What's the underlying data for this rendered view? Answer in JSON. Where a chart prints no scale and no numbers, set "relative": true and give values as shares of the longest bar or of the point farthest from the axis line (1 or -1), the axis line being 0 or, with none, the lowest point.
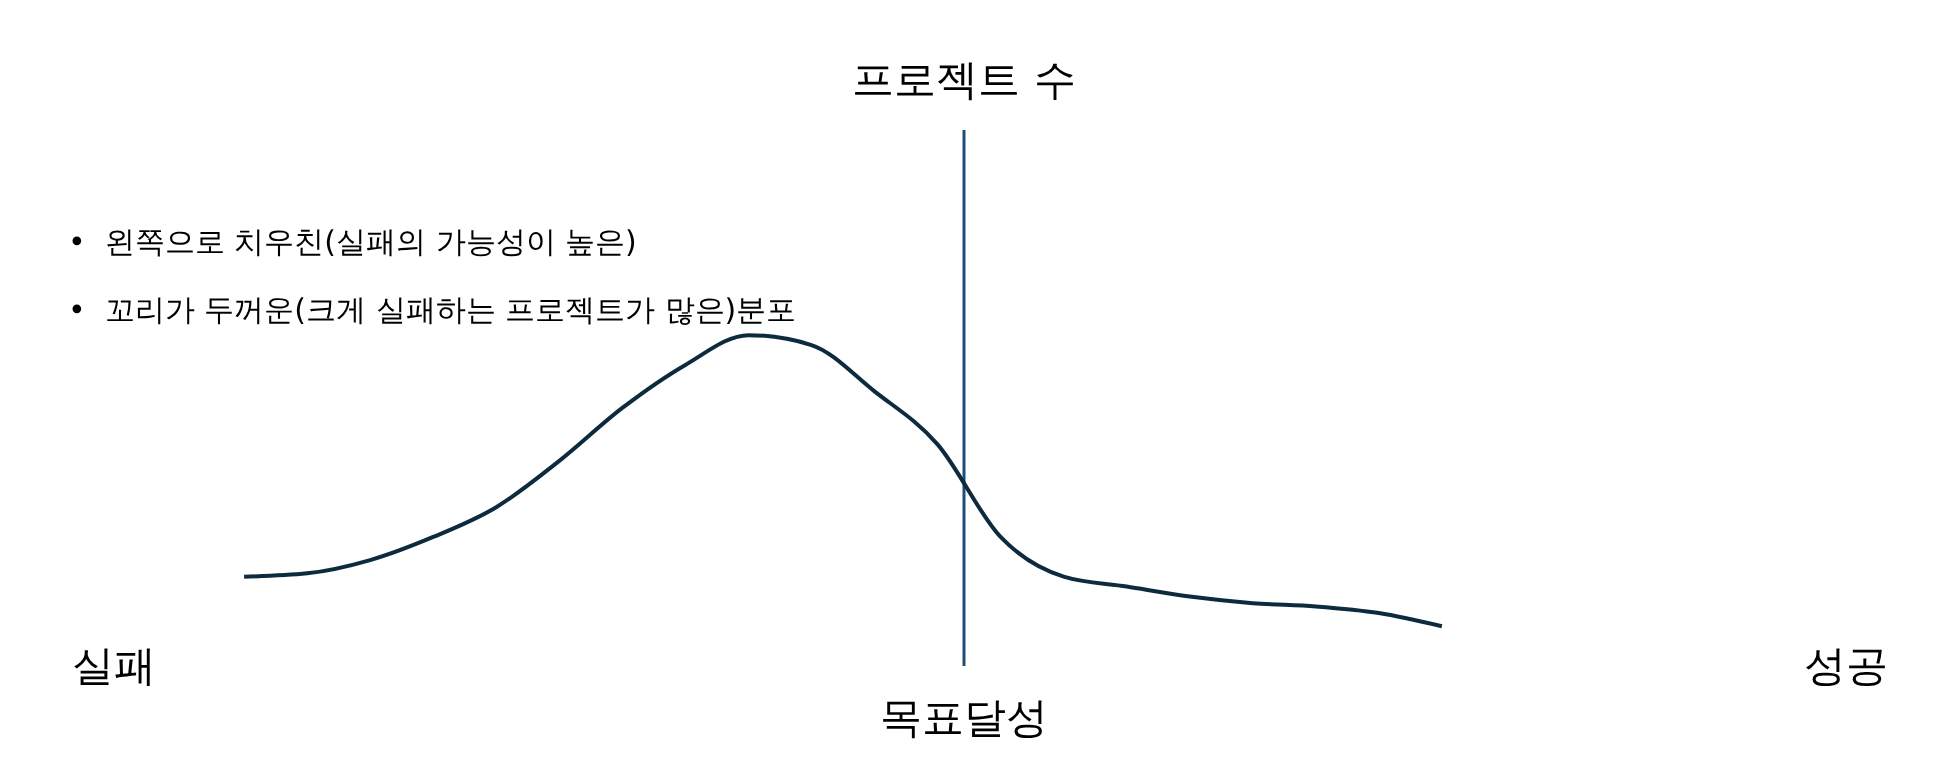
{
  "chart_data": {
    "type": "line",
    "relative": true,
    "xlabel": "목표달성",
    "annotations": [
      "•  왼쪽으로 치우친(실패의 가능성이 높은)",
      "•  꼬리가 두꺼운(크게 실패하는 프로젝트가 많은)분포",
      "실패",
      "성공",
      "프로젝트 수"
    ],
    "categories": [
      null,
      null,
      null,
      null,
      null,
      null,
      null,
      null,
      null,
      null,
      null,
      null,
      null,
      null,
      null,
      null,
      null,
      null,
      null,
      null
    ],
    "series": [
      {
        "color": "#0d2b3e",
        "values": [
          0.27,
          0.28,
          0.32,
          0.39,
          0.48,
          0.62,
          0.78,
          0.91,
          1,
          0.97,
          0.83,
          0.67,
          0.39,
          0.27,
          0.24,
          0.21,
          0.19,
          0.18,
          0.16,
          0.12
        ]
      }
    ],
    "marker": "none",
    "line_style": "solid"
  }
}
